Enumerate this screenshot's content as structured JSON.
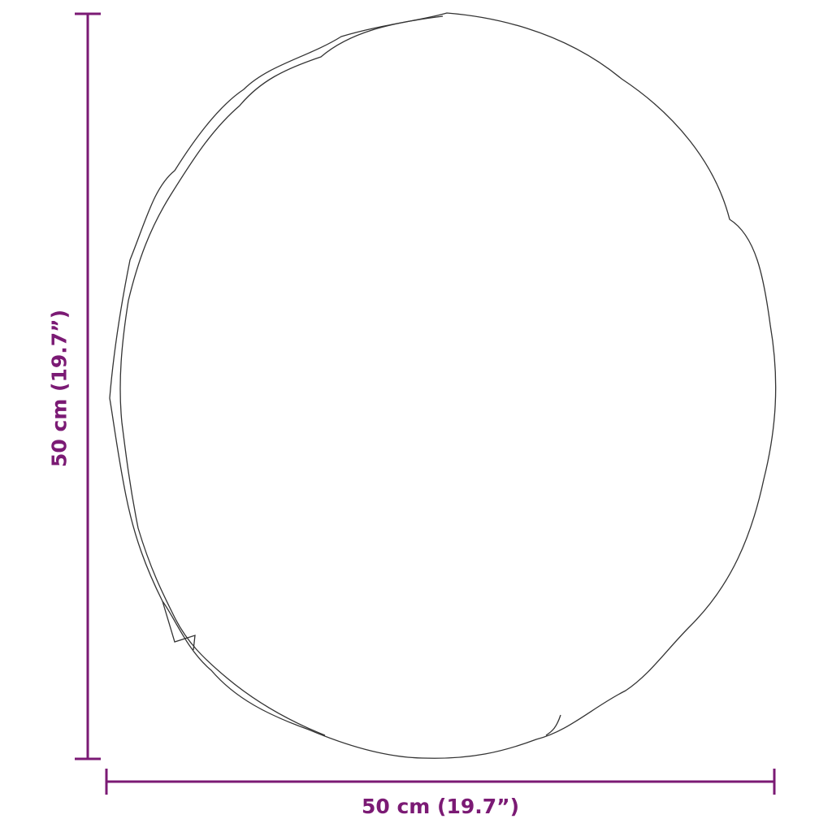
{
  "colors": {
    "dimension": "#7b1a74",
    "outline": "#333333"
  },
  "dimensions": {
    "width_label": "50 cm (19.7”)",
    "height_label": "50 cm (19.7”)"
  }
}
